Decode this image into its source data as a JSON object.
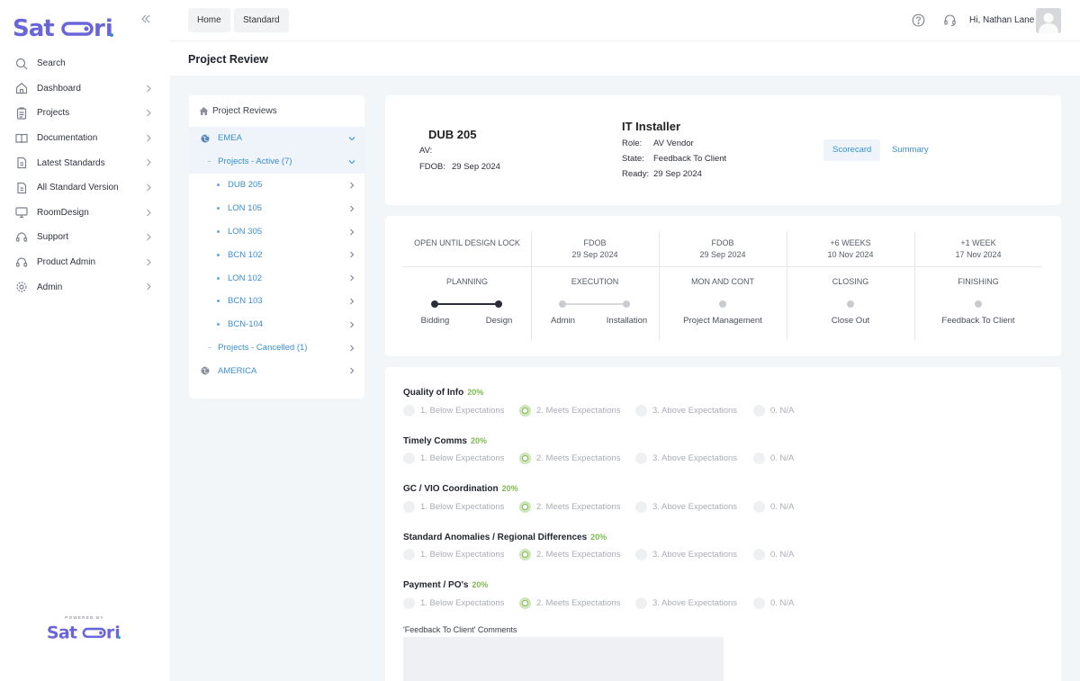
{
  "app": {
    "logo_text": "Satori",
    "powered_by": "POWERED BY"
  },
  "sidebar": {
    "items": [
      {
        "label": "Search",
        "icon": "search-icon",
        "has_chevron": false
      },
      {
        "label": "Dashboard",
        "icon": "home-icon",
        "has_chevron": true
      },
      {
        "label": "Projects",
        "icon": "clipboard-icon",
        "has_chevron": true
      },
      {
        "label": "Documentation",
        "icon": "book-icon",
        "has_chevron": true
      },
      {
        "label": "Latest Standards",
        "icon": "document-icon",
        "has_chevron": true
      },
      {
        "label": "All Standard Version",
        "icon": "document-icon",
        "has_chevron": true
      },
      {
        "label": "RoomDesign",
        "icon": "monitor-icon",
        "has_chevron": true
      },
      {
        "label": "Support",
        "icon": "headset-icon",
        "has_chevron": true
      },
      {
        "label": "Product Admin",
        "icon": "headset-icon",
        "has_chevron": true
      },
      {
        "label": "Admin",
        "icon": "gear-icon",
        "has_chevron": true
      }
    ]
  },
  "topbar": {
    "breadcrumbs": [
      "Home",
      "Standard"
    ],
    "greeting": "Hi, Nathan Lane"
  },
  "page": {
    "title": "Project Review"
  },
  "tree": {
    "heading": "Project Reviews",
    "region1": "EMEA",
    "active_group": "Projects - Active (7)",
    "projects": [
      "DUB 205",
      "LON 105",
      "LON 305",
      "BCN 102",
      "LON 102",
      "BCN 103",
      "BCN-104"
    ],
    "cancelled_group": "Projects - Cancelled (1)",
    "region2": "AMERICA"
  },
  "info": {
    "project": "DUB 205",
    "av_label": "AV:",
    "fdob_label": "FDOB:",
    "fdob_value": "29 Sep 2024",
    "installer_title": "IT Installer",
    "role_label": "Role:",
    "role_value": "AV Vendor",
    "state_label": "State:",
    "state_value": "Feedback To Client",
    "ready_label": "Ready:",
    "ready_value": "29 Sep 2024",
    "tabs": [
      "Scorecard",
      "Summary"
    ]
  },
  "timeline": {
    "headers": [
      {
        "line1": "OPEN UNTIL DESIGN LOCK",
        "line2": ""
      },
      {
        "line1": "FDOB",
        "line2": "29 Sep 2024"
      },
      {
        "line1": "FDOB",
        "line2": "29 Sep 2024"
      },
      {
        "line1": "+6 WEEKS",
        "line2": "10 Nov 2024"
      },
      {
        "line1": "+1 WEEK",
        "line2": "17 Nov 2024"
      }
    ],
    "phases": [
      "PLANNING",
      "EXECUTION",
      "MON AND CONT",
      "CLOSING",
      "FINISHING"
    ],
    "steps": [
      "Bidding",
      "Design",
      "Admin",
      "Installation",
      "Project Management",
      "Close Out",
      "Feedback To Client"
    ]
  },
  "scorecard": {
    "options": [
      "1. Below Expectations",
      "2. Meets Expectations",
      "3. Above Expectations",
      "0. N/A"
    ],
    "questions": [
      {
        "title": "Quality of Info",
        "pct": "20%",
        "selected": 1
      },
      {
        "title": "Timely Comms",
        "pct": "20%",
        "selected": 1
      },
      {
        "title": "GC / VIO Coordination",
        "pct": "20%",
        "selected": 1
      },
      {
        "title": "Standard Anomalies / Regional Differences",
        "pct": "20%",
        "selected": 1
      },
      {
        "title": "Payment / PO's",
        "pct": "20%",
        "selected": 1
      }
    ],
    "comments_label": "'Feedback To Client' Comments"
  },
  "colors": {
    "accent": "#3a8fd0",
    "brand": "#6a66d9",
    "success": "#7fbb4f"
  }
}
